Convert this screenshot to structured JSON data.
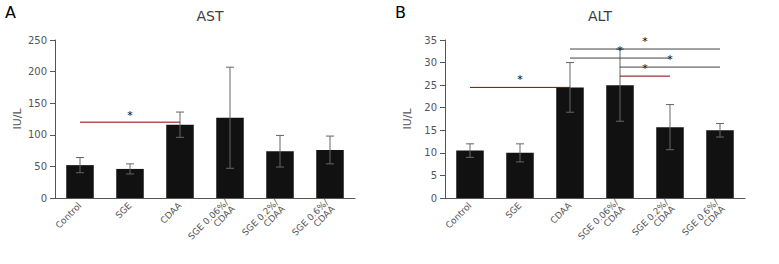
{
  "chart_data": [
    {
      "type": "bar",
      "title": "AST",
      "panel_label": "A",
      "ylabel": "IU/L",
      "categories": [
        "Control",
        "SGE",
        "CDAA",
        "SGE 0.06%/\nCDAA",
        "SGE 0.2%/\nCDAA",
        "SGE 0.6%/\nCDAA"
      ],
      "values": [
        52,
        46,
        116,
        127,
        74,
        76
      ],
      "errors": [
        12,
        8,
        20,
        80,
        25,
        22
      ],
      "color": "#111111",
      "ylim": [
        0,
        250
      ],
      "yticks": [
        0,
        50,
        100,
        150,
        200,
        250
      ],
      "grid": false,
      "significance": [
        {
          "from": "Control",
          "to": "CDAA",
          "y": 120,
          "label": "*",
          "label_y": 122,
          "color": "#8B0000"
        }
      ]
    },
    {
      "type": "bar",
      "title": "ALT",
      "panel_label": "B",
      "ylabel": "IU/L",
      "categories": [
        "Control",
        "SGE",
        "CDAA",
        "SGE 0.06%/\nCDAA",
        "SGE 0.2%/\nCDAA",
        "SGE 0.6%/\nCDAA"
      ],
      "values": [
        10.5,
        10,
        24.5,
        25,
        15.7,
        15
      ],
      "errors": [
        1.5,
        2,
        5.5,
        8,
        5,
        1.5
      ],
      "color": "#111111",
      "ylim": [
        0,
        35
      ],
      "yticks": [
        0,
        5,
        10,
        15,
        20,
        25,
        30,
        35
      ],
      "grid": false,
      "significance": [
        {
          "from": "Control",
          "to": "CDAA",
          "y": 24.5,
          "label": "*",
          "label_y": 25.0,
          "color": "#8B0000"
        },
        {
          "from": "SGE 0.06%/\nCDAA",
          "to": "SGE 0.2%/\nCDAA",
          "y": 27.0,
          "label": "*",
          "label_y": 27.5,
          "color": "#8B0000"
        },
        {
          "from": "SGE 0.06%/\nCDAA",
          "to": "SGE 0.6%/\nCDAA",
          "y": 29.0,
          "label": "*",
          "label_y": 29.5,
          "color": "#444444"
        },
        {
          "from": "CDAA",
          "to": "SGE 0.2%/\nCDAA",
          "y": 31.0,
          "label": "*",
          "label_y": 31.5,
          "color": "#444444"
        },
        {
          "from": "CDAA",
          "to": "SGE 0.6%/\nCDAA",
          "y": 33.0,
          "label": "*",
          "label_y": 33.5,
          "color": "#444444"
        }
      ]
    }
  ]
}
